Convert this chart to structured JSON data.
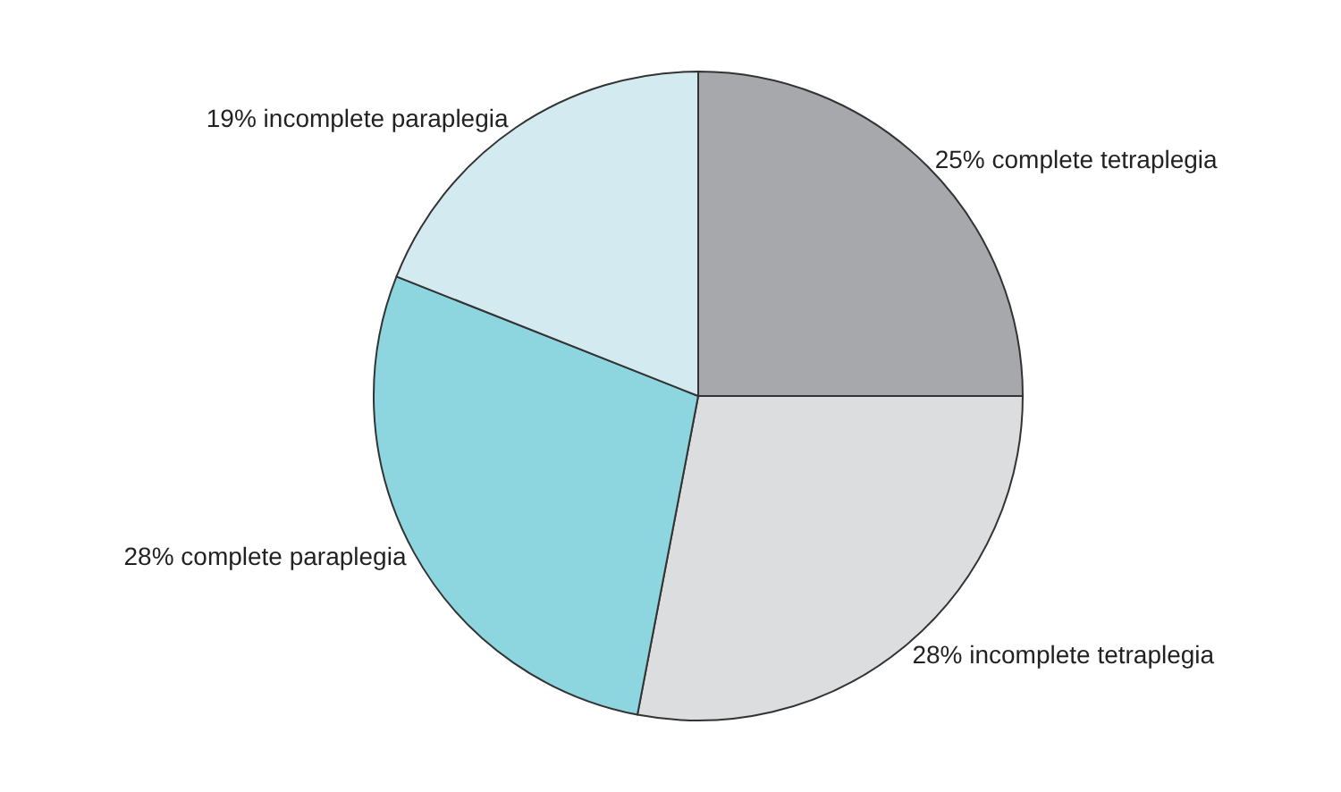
{
  "chart_data": {
    "type": "pie",
    "categories": [
      "25% complete tetraplegia",
      "28% incomplete tetraplegia",
      "28% complete paraplegia",
      "19% incomplete paraplegia"
    ],
    "values": [
      25,
      28,
      28,
      19
    ],
    "colors": [
      "#a7a8ab",
      "#dcdddf",
      "#8dd5df",
      "#d3eaf0"
    ],
    "legend": false
  }
}
